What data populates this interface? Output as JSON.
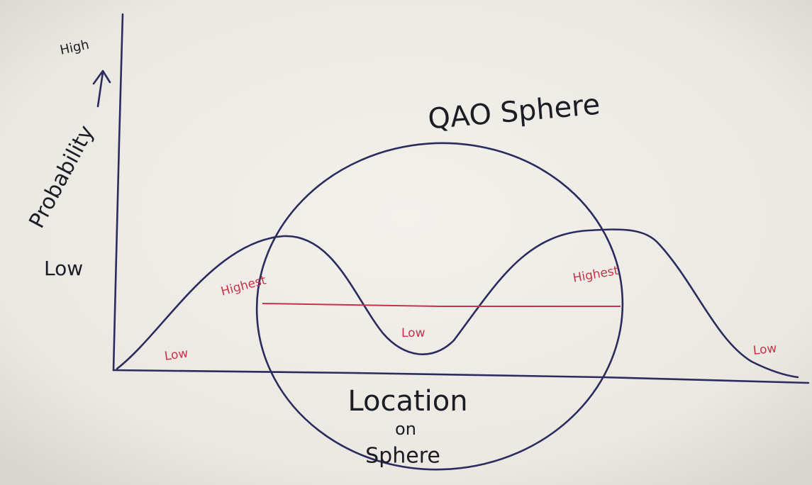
{
  "y_axis": {
    "high": "High",
    "label": "Probability",
    "low": "Low"
  },
  "title": "QAO Sphere",
  "curve_labels": [
    "Low",
    "Highest",
    "Low",
    "Highest",
    "Low"
  ],
  "x_axis": {
    "label": [
      "Location",
      "on",
      "Sphere"
    ]
  }
}
